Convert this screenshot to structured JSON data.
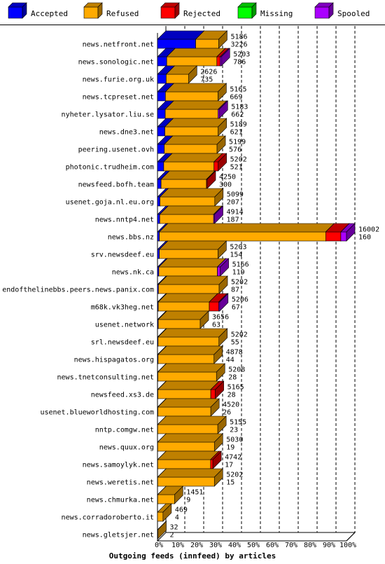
{
  "chart_data": {
    "type": "bar",
    "orientation": "horizontal",
    "stacked": true,
    "title": "",
    "xlabel": "Outgoing feeds (innfeed) by articles",
    "ylabel": "",
    "xlim": [
      0,
      100
    ],
    "x_unit": "%",
    "x_ticks": [
      "0%",
      "10%",
      "20%",
      "30%",
      "40%",
      "50%",
      "60%",
      "70%",
      "80%",
      "90%",
      "100%"
    ],
    "grid": true,
    "legend_position": "top",
    "legend": [
      {
        "name": "Accepted",
        "color": "#0000ff"
      },
      {
        "name": "Refused",
        "color": "#ffaa00"
      },
      {
        "name": "Rejected",
        "color": "#ff0000"
      },
      {
        "name": "Missing",
        "color": "#00ff00"
      },
      {
        "name": "Spooled",
        "color": "#aa00ff"
      }
    ],
    "categories": [
      "news.netfront.net",
      "news.sonologic.net",
      "news.furie.org.uk",
      "news.tcpreset.net",
      "nyheter.lysator.liu.se",
      "news.dne3.net",
      "peering.usenet.ovh",
      "photonic.trudheim.com",
      "newsfeed.bofh.team",
      "usenet.goja.nl.eu.org",
      "news.nntp4.net",
      "news.bbs.nz",
      "srv.newsdeef.eu",
      "news.nk.ca",
      "endofthelinebbs.peers.news.panix.com",
      "m68k.vk3heg.net",
      "usenet.network",
      "srl.newsdeef.eu",
      "news.hispagatos.org",
      "news.tnetconsulting.net",
      "newsfeed.xs3.de",
      "usenet.blueworldhosting.com",
      "nntp.comgw.net",
      "news.quux.org",
      "news.samoylyk.net",
      "news.weretis.net",
      "news.chmurka.net",
      "news.corradoroberto.it",
      "news.gletsjer.net"
    ],
    "labels_total": [
      5186,
      5203,
      2626,
      5165,
      5183,
      5189,
      5199,
      5202,
      4250,
      5099,
      4914,
      16002,
      5203,
      5166,
      5202,
      5206,
      3656,
      5202,
      4878,
      5208,
      5165,
      4520,
      5155,
      5030,
      4742,
      5202,
      1451,
      469,
      32
    ],
    "labels_accepted": [
      3226,
      786,
      735,
      669,
      662,
      621,
      576,
      521,
      300,
      207,
      187,
      160,
      154,
      119,
      87,
      67,
      63,
      55,
      44,
      28,
      28,
      26,
      23,
      19,
      17,
      15,
      9,
      4,
      2
    ],
    "series": [
      {
        "name": "Accepted",
        "color": "#0000ff",
        "values": [
          20.2,
          4.9,
          4.6,
          4.2,
          4.1,
          3.9,
          3.6,
          3.3,
          1.9,
          1.3,
          1.2,
          1.0,
          1.0,
          0.7,
          0.5,
          0.4,
          0.4,
          0.3,
          0.3,
          0.2,
          0.2,
          0.2,
          0.1,
          0.1,
          0.1,
          0.1,
          0.1,
          0.0,
          0.0
        ]
      },
      {
        "name": "Refused",
        "color": "#ffaa00",
        "values": [
          12.2,
          26.5,
          11.8,
          27.8,
          28.0,
          28.2,
          27.9,
          26.6,
          24.0,
          29.0,
          28.5,
          88.0,
          31.0,
          31.0,
          32.1,
          27.0,
          22.2,
          32.2,
          29.6,
          31.0,
          28.0,
          28.0,
          31.8,
          30.0,
          28.0,
          30.0,
          8.9,
          2.9,
          0.2
        ]
      },
      {
        "name": "Rejected",
        "color": "#ff0000",
        "values": [
          0,
          1.8,
          0,
          0,
          0,
          0,
          0,
          2.2,
          0.4,
          0,
          0,
          8.0,
          0,
          0,
          0,
          5.0,
          0,
          0,
          0,
          0,
          2.4,
          0,
          0,
          0,
          1.2,
          0,
          0,
          0,
          0
        ]
      },
      {
        "name": "Missing",
        "color": "#00ff00",
        "values": [
          0,
          0,
          0,
          0,
          0,
          0,
          0,
          0,
          0,
          0,
          0,
          0,
          0,
          0,
          0,
          0,
          0,
          0,
          0,
          0,
          0,
          0,
          0,
          0,
          0,
          0,
          0,
          0,
          0
        ]
      },
      {
        "name": "Spooled",
        "color": "#aa00ff",
        "values": [
          0,
          0.6,
          0,
          0,
          0.6,
          0,
          0,
          0,
          0,
          0,
          0.5,
          3.0,
          0,
          1.5,
          0,
          0.5,
          0,
          0,
          0,
          0,
          0,
          0,
          0,
          0,
          0,
          0,
          0,
          0,
          0
        ]
      }
    ]
  }
}
